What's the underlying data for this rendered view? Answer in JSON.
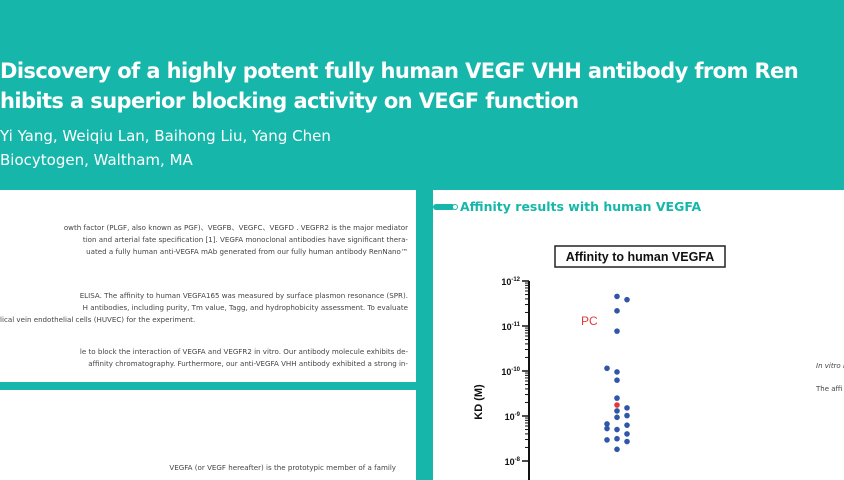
{
  "header": {
    "title_line1": "Discovery of a highly potent fully human VEGF VHH antibody from Ren",
    "title_line2": "hibits a superior blocking activity on VEGF function",
    "authors": "Yi Yang, Weiqiu Lan, Baihong Liu, Yang Chen",
    "affiliation": "Biocytogen, Waltham, MA"
  },
  "intro_panel": {
    "lines": [
      "owth factor (PLGF, also known as PGF)、VEGFB、VEGFC、VEGFD . VEGFR2 is the major mediator",
      "tion and arterial fate specification [1]. VEGFA monoclonal antibodies have significant thera-",
      "uated a fully human anti-VEGFA mAb generated from our fully human antibody RenNano™",
      "ELISA. The affinity to human VEGFA165 was measured by surface plasmon resonance (SPR).",
      "H antibodies, including purity, Tm value, Tagg, and hydrophobicity assessment. To evaluate",
      "lical vein endothelial cells (HUVEC) for the experiment.",
      "le to block the interaction of VEGFA and VEGFR2 in vitro. Our antibody molecule exhibits de-",
      " affinity chromatography. Furthermore, our anti-VEGFA VHH antibody exhibited a strong in-"
    ]
  },
  "background_panel": {
    "text": "VEGFA (or VEGF hereafter) is the prototypic member of a family"
  },
  "results_panel": {
    "section_title": "Affinity results with human VEGFA",
    "side_text_1": "In vitro b",
    "side_text_2": "The affi"
  },
  "chart_data": {
    "type": "scatter",
    "title": "Affinity to human VEGFA",
    "ylabel": "KD (M)",
    "yscale": "log",
    "y_inverted": true,
    "ylim": [
      1e-12,
      1e-08
    ],
    "yticks": [
      "10^-12",
      "10^-11",
      "10^-10",
      "10^-9",
      "10^-8"
    ],
    "annotation": "PC",
    "colors": {
      "points": "#2f56a8",
      "pc": "#e03a3a"
    },
    "points": [
      {
        "kd": 2.2e-12
      },
      {
        "kd": 2.6e-12
      },
      {
        "kd": 4.6e-12
      },
      {
        "kd": 1.3e-11
      },
      {
        "kd": 8.7e-11
      },
      {
        "kd": 1.05e-10
      },
      {
        "kd": 1.6e-10
      },
      {
        "kd": 4e-10
      },
      {
        "kd": 5.7e-10,
        "label": "PC"
      },
      {
        "kd": 6.6e-10
      },
      {
        "kd": 7.7e-10
      },
      {
        "kd": 9.8e-10
      },
      {
        "kd": 1.07e-09
      },
      {
        "kd": 1.5e-09
      },
      {
        "kd": 1.9e-09
      },
      {
        "kd": 1.6e-09
      },
      {
        "kd": 2e-09
      },
      {
        "kd": 2.5e-09
      },
      {
        "kd": 3.2e-09
      },
      {
        "kd": 3.4e-09
      },
      {
        "kd": 3.7e-09
      },
      {
        "kd": 5.5e-09
      }
    ]
  }
}
